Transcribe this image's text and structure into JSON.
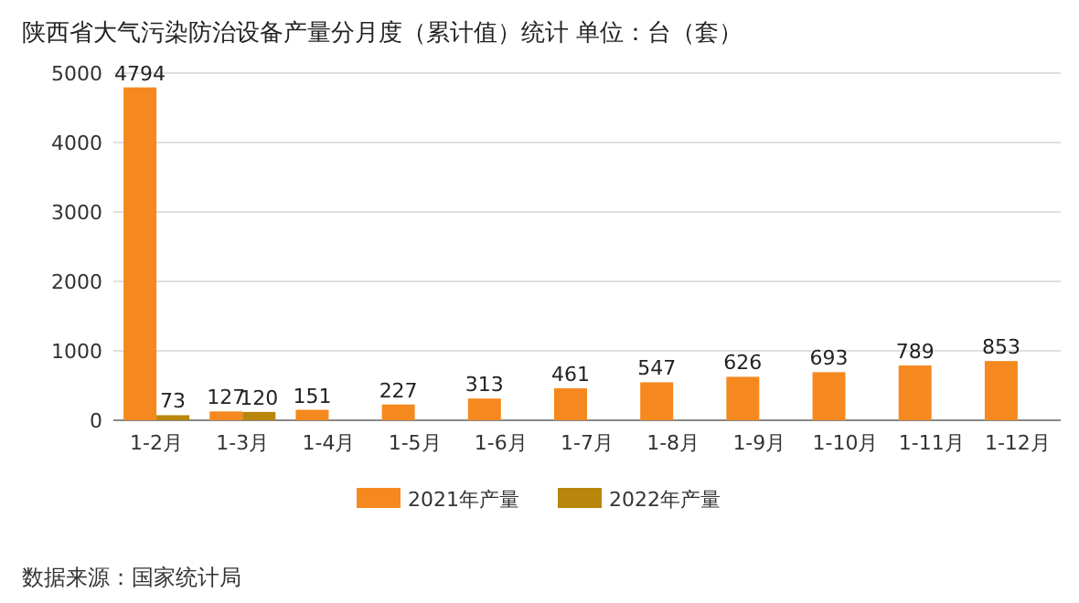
{
  "chart_data": {
    "type": "bar",
    "title": "陕西省大气污染防治设备产量分月度（累计值）统计 单位：台（套）",
    "categories": [
      "1-2月",
      "1-3月",
      "1-4月",
      "1-5月",
      "1-6月",
      "1-7月",
      "1-8月",
      "1-9月",
      "1-10月",
      "1-11月",
      "1-12月"
    ],
    "series": [
      {
        "name": "2021年产量",
        "color": "#f5891f",
        "values": [
          4794,
          127,
          151,
          227,
          313,
          461,
          547,
          626,
          693,
          789,
          853
        ]
      },
      {
        "name": "2022年产量",
        "color": "#b8860b",
        "values": [
          73,
          120,
          null,
          null,
          null,
          null,
          null,
          null,
          null,
          null,
          null
        ]
      }
    ],
    "ylim": [
      0,
      5000
    ],
    "yticks": [
      0,
      1000,
      2000,
      3000,
      4000,
      5000
    ],
    "grid": "y",
    "legend": "bottom",
    "data_labels": true,
    "annotations": [
      "数据来源：国家统计局"
    ]
  }
}
